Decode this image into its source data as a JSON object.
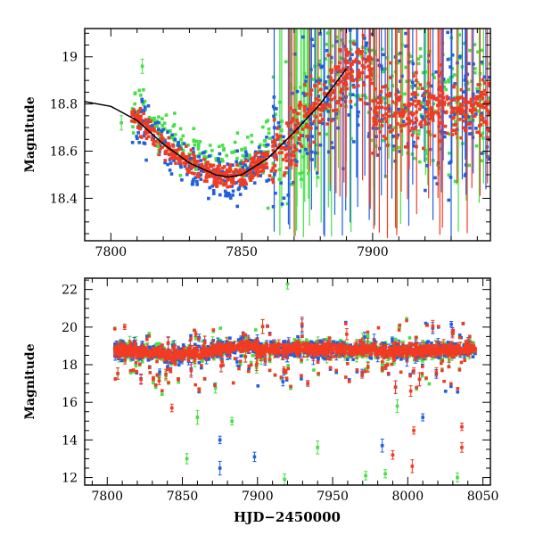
{
  "chart_data": [
    {
      "type": "scatter",
      "panel": "top",
      "title": "",
      "xlabel": "",
      "ylabel": "Magnitude",
      "xlim": [
        7790,
        7945
      ],
      "ylim": [
        19.12,
        18.22
      ],
      "y_inverted": true,
      "x_ticks": [
        7800,
        7850,
        7900
      ],
      "y_ticks": [
        18.4,
        18.6,
        18.8,
        19
      ],
      "y_tick_labels": [
        "18.4",
        "18.6",
        "18.8",
        "19"
      ],
      "grid": false,
      "legend": "none",
      "series_colors": {
        "blue": "#1f5fe0",
        "green": "#44e044",
        "red": "#f23b22"
      },
      "trend_curve": {
        "color": "#000000",
        "x": [
          7790,
          7800,
          7810,
          7820,
          7830,
          7840,
          7845,
          7850,
          7860,
          7870,
          7880,
          7890
        ],
        "y": [
          18.81,
          18.79,
          18.73,
          18.63,
          18.55,
          18.5,
          18.49,
          18.5,
          18.57,
          18.68,
          18.8,
          18.95
        ]
      }
    },
    {
      "type": "scatter",
      "panel": "bottom",
      "title": "",
      "xlabel": "HJD−2450000",
      "ylabel": "Magnitude",
      "xlim": [
        7785,
        8055
      ],
      "ylim": [
        22.6,
        11.6
      ],
      "y_inverted": true,
      "x_ticks": [
        7800,
        7850,
        7900,
        7950,
        8000,
        8050
      ],
      "y_ticks": [
        12,
        14,
        16,
        18,
        20,
        22
      ],
      "grid": false,
      "legend": "none",
      "series_colors": {
        "blue": "#1f5fe0",
        "green": "#44e044",
        "red": "#f23b22"
      },
      "bright_outliers": [
        {
          "color": "blue",
          "x": 7875,
          "y": 12.5
        },
        {
          "color": "blue",
          "x": 7875,
          "y": 14.0
        },
        {
          "color": "blue",
          "x": 7898,
          "y": 13.1
        },
        {
          "color": "blue",
          "x": 7983,
          "y": 13.7
        },
        {
          "color": "blue",
          "x": 8010,
          "y": 15.2
        },
        {
          "color": "green",
          "x": 7918,
          "y": 11.9
        },
        {
          "color": "green",
          "x": 7972,
          "y": 12.1
        },
        {
          "color": "green",
          "x": 7985,
          "y": 12.2
        },
        {
          "color": "green",
          "x": 8033,
          "y": 12.0
        },
        {
          "color": "green",
          "x": 7853,
          "y": 13.0
        },
        {
          "color": "green",
          "x": 7940,
          "y": 13.6
        },
        {
          "color": "green",
          "x": 7860,
          "y": 15.2
        },
        {
          "color": "green",
          "x": 7883,
          "y": 15.0
        },
        {
          "color": "green",
          "x": 7993,
          "y": 15.8
        },
        {
          "color": "red",
          "x": 8003,
          "y": 12.6
        },
        {
          "color": "red",
          "x": 7990,
          "y": 13.2
        },
        {
          "color": "red",
          "x": 8036,
          "y": 13.6
        },
        {
          "color": "red",
          "x": 8004,
          "y": 14.5
        },
        {
          "color": "red",
          "x": 8036,
          "y": 14.7
        },
        {
          "color": "red",
          "x": 7843,
          "y": 15.7
        },
        {
          "color": "red",
          "x": 8002,
          "y": 16.6
        },
        {
          "color": "green",
          "x": 7920,
          "y": 22.3
        }
      ]
    }
  ]
}
